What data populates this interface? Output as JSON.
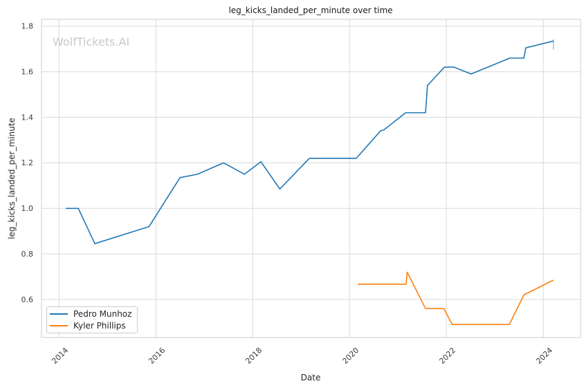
{
  "watermark": "WolfTickets.AI",
  "chart_data": {
    "type": "line",
    "title": "leg_kicks_landed_per_minute over time",
    "xlabel": "Date",
    "ylabel": "leg_kicks_landed_per_minute",
    "grid": true,
    "legend_position": "lower-left",
    "xlim": [
      2013.64,
      2024.77
    ],
    "ylim": [
      0.433,
      1.83
    ],
    "xticks": [
      2014,
      2016,
      2018,
      2020,
      2022,
      2024
    ],
    "xtick_labels": [
      "2014",
      "2016",
      "2018",
      "2020",
      "2022",
      "2024"
    ],
    "yticks": [
      0.6,
      0.8,
      1.0,
      1.2,
      1.4,
      1.6,
      1.8
    ],
    "ytick_labels": [
      "0.6",
      "0.8",
      "1.0",
      "1.2",
      "1.4",
      "1.6",
      "1.8"
    ],
    "series": [
      {
        "name": "Pedro Munhoz",
        "color": "#1f77b4",
        "x": [
          2014.14,
          2014.4,
          2014.74,
          2015.86,
          2016.5,
          2016.86,
          2017.4,
          2017.83,
          2018.17,
          2018.56,
          2019.17,
          2020.14,
          2020.64,
          2020.71,
          2021.16,
          2021.57,
          2021.61,
          2021.96,
          2022.16,
          2022.51,
          2023.31,
          2023.6,
          2023.64,
          2024.21
        ],
        "y": [
          1.0,
          1.0,
          0.845,
          0.92,
          1.135,
          1.15,
          1.2,
          1.15,
          1.205,
          1.085,
          1.22,
          1.22,
          1.34,
          1.345,
          1.42,
          1.42,
          1.54,
          1.62,
          1.62,
          1.59,
          1.66,
          1.66,
          1.705,
          1.735
        ]
      },
      {
        "name": "Kyler Phillips",
        "color": "#ff7f0e",
        "x": [
          2020.17,
          2021.17,
          2021.19,
          2021.57,
          2021.95,
          2022.12,
          2023.3,
          2023.6,
          2024.21
        ],
        "y": [
          0.667,
          0.667,
          0.72,
          0.56,
          0.56,
          0.49,
          0.49,
          0.62,
          0.685
        ]
      }
    ],
    "end_marker": {
      "x": 2024.21,
      "y_from": 1.697,
      "y_to": 1.742,
      "color": "rgba(31,119,180,0.45)"
    }
  },
  "colors": {
    "grid": "#d9d9d9",
    "spine": "#cccccc",
    "background": "#ffffff"
  }
}
